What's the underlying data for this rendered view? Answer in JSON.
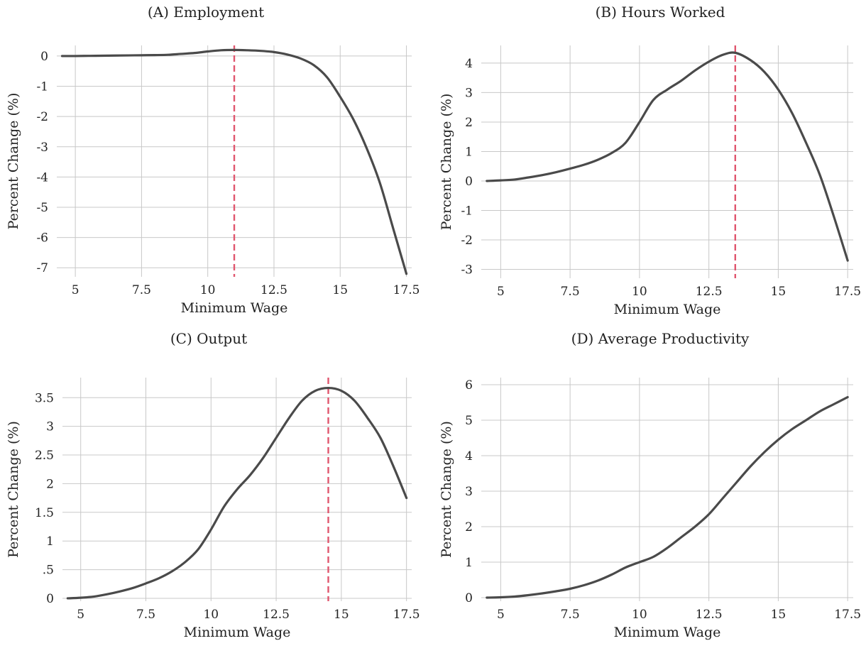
{
  "colors": {
    "line": "#4a4a4a",
    "reference": "#e0566e",
    "grid": "#c8c8c8"
  },
  "chart_data": [
    {
      "type": "line",
      "title": "(A) Employment",
      "xlabel": "Minimum Wage",
      "ylabel": "Percent Change (%)",
      "xlim": [
        4.3,
        17.7
      ],
      "ylim": [
        -7.3,
        0.35
      ],
      "xticks": [
        5,
        7.5,
        10,
        12.5,
        15,
        17.5
      ],
      "xtick_labels": [
        "5",
        "7.5",
        "10",
        "12.5",
        "15",
        "17.5"
      ],
      "yticks": [
        0,
        -1,
        -2,
        -3,
        -4,
        -5,
        -6,
        -7
      ],
      "ytick_labels": [
        "0",
        "-1",
        "-2",
        "-3",
        "-4",
        "-5",
        "-6",
        "-7"
      ],
      "grid": true,
      "reference_line_x": 11.0,
      "series": [
        {
          "x": [
            4.5,
            5,
            5.5,
            6,
            6.5,
            7,
            7.5,
            8,
            8.5,
            9,
            9.5,
            10,
            10.5,
            11,
            11.5,
            12,
            12.5,
            13,
            13.5,
            14,
            14.5,
            15,
            15.5,
            16,
            16.5,
            17,
            17.5
          ],
          "values": [
            0,
            0,
            0.005,
            0.01,
            0.015,
            0.02,
            0.025,
            0.03,
            0.04,
            0.07,
            0.1,
            0.15,
            0.19,
            0.2,
            0.19,
            0.17,
            0.13,
            0.05,
            -0.08,
            -0.3,
            -0.7,
            -1.35,
            -2.1,
            -3.05,
            -4.2,
            -5.7,
            -7.2
          ]
        }
      ]
    },
    {
      "type": "line",
      "title": "(B) Hours Worked",
      "xlabel": "Minimum Wage",
      "ylabel": "Percent Change (%)",
      "xlim": [
        4.3,
        17.7
      ],
      "ylim": [
        -3.3,
        4.6
      ],
      "xticks": [
        5,
        7.5,
        10,
        12.5,
        15,
        17.5
      ],
      "xtick_labels": [
        "5",
        "7.5",
        "10",
        "12.5",
        "15",
        "17.5"
      ],
      "yticks": [
        4,
        3,
        2,
        1,
        0,
        -1,
        -2,
        -3
      ],
      "ytick_labels": [
        "4",
        "3",
        "2",
        "1",
        "0",
        "-1",
        "-2",
        "-3"
      ],
      "grid": true,
      "reference_line_x": 13.45,
      "series": [
        {
          "x": [
            4.5,
            5,
            5.5,
            6,
            6.5,
            7,
            7.5,
            8,
            8.5,
            9,
            9.5,
            10,
            10.5,
            11,
            11.5,
            12,
            12.5,
            13,
            13.45,
            14,
            14.5,
            15,
            15.5,
            16,
            16.5,
            17,
            17.5
          ],
          "values": [
            0,
            0.02,
            0.05,
            0.12,
            0.2,
            0.3,
            0.42,
            0.55,
            0.72,
            0.95,
            1.3,
            2.0,
            2.75,
            3.1,
            3.4,
            3.75,
            4.05,
            4.28,
            4.35,
            4.1,
            3.7,
            3.1,
            2.3,
            1.3,
            0.2,
            -1.2,
            -2.7
          ]
        }
      ]
    },
    {
      "type": "line",
      "title": "(C) Output",
      "xlabel": "Minimum Wage",
      "ylabel": "Percent Change (%)",
      "xlim": [
        4.3,
        17.7
      ],
      "ylim": [
        -0.05,
        3.85
      ],
      "xticks": [
        5,
        7.5,
        10,
        12.5,
        15,
        17.5
      ],
      "xtick_labels": [
        "5",
        "7.5",
        "10",
        "12.5",
        "15",
        "17.5"
      ],
      "yticks": [
        3.5,
        3,
        2.5,
        2,
        1.5,
        1,
        0.5,
        0
      ],
      "ytick_labels": [
        "3.5",
        "3",
        "2.5",
        "2",
        "1.5",
        "1",
        ".5",
        "0"
      ],
      "grid": true,
      "reference_line_x": 14.5,
      "series": [
        {
          "x": [
            4.5,
            5,
            5.5,
            6,
            6.5,
            7,
            7.5,
            8,
            8.5,
            9,
            9.5,
            10,
            10.5,
            11,
            11.5,
            12,
            12.5,
            13,
            13.5,
            14,
            14.5,
            15,
            15.5,
            16,
            16.5,
            17,
            17.5
          ],
          "values": [
            0,
            0.01,
            0.03,
            0.07,
            0.12,
            0.18,
            0.26,
            0.35,
            0.47,
            0.63,
            0.85,
            1.2,
            1.6,
            1.9,
            2.15,
            2.45,
            2.8,
            3.15,
            3.45,
            3.62,
            3.67,
            3.62,
            3.45,
            3.15,
            2.8,
            2.3,
            1.75
          ]
        }
      ]
    },
    {
      "type": "line",
      "title": "(D) Average Productivity",
      "xlabel": "Minimum Wage",
      "ylabel": "Percent Change (%)",
      "xlim": [
        4.3,
        17.7
      ],
      "ylim": [
        -0.1,
        6.2
      ],
      "xticks": [
        5,
        7.5,
        10,
        12.5,
        15,
        17.5
      ],
      "xtick_labels": [
        "5",
        "7.5",
        "10",
        "12.5",
        "15",
        "17.5"
      ],
      "yticks": [
        6,
        5,
        4,
        3,
        2,
        1,
        0
      ],
      "ytick_labels": [
        "6",
        "5",
        "4",
        "3",
        "2",
        "1",
        "0"
      ],
      "grid": true,
      "reference_line_x": null,
      "series": [
        {
          "x": [
            4.5,
            5,
            5.5,
            6,
            6.5,
            7,
            7.5,
            8,
            8.5,
            9,
            9.5,
            10,
            10.5,
            11,
            11.5,
            12,
            12.5,
            13,
            13.5,
            14,
            14.5,
            15,
            15.5,
            16,
            16.5,
            17,
            17.5
          ],
          "values": [
            0,
            0.01,
            0.03,
            0.07,
            0.12,
            0.18,
            0.25,
            0.35,
            0.48,
            0.65,
            0.85,
            1.0,
            1.15,
            1.4,
            1.7,
            2.0,
            2.35,
            2.8,
            3.25,
            3.7,
            4.1,
            4.45,
            4.75,
            5.0,
            5.25,
            5.45,
            5.65
          ]
        }
      ]
    }
  ]
}
